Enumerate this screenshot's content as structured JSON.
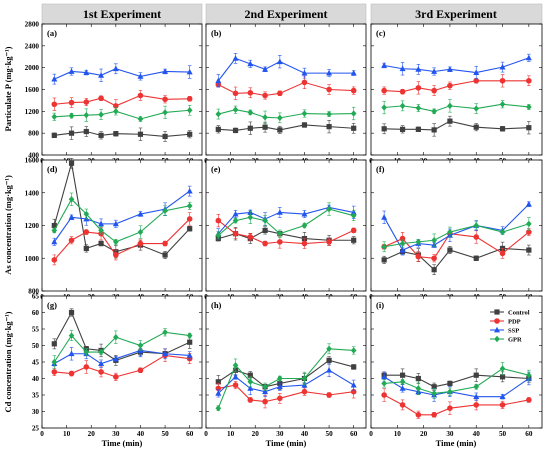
{
  "headers": [
    "1st Experiment",
    "2nd Experiment",
    "3rd Experiment"
  ],
  "x_label": "Time (min)",
  "y_labels": [
    "Particulate P (mg·kg⁻¹)",
    "As concentration (mg·kg⁻¹)",
    "Cd concentration (mg·kg⁻¹)"
  ],
  "panel_labels": [
    "(a)",
    "(b)",
    "(c)",
    "(d)",
    "(e)",
    "(f)",
    "(g)",
    "(h)",
    "(i)"
  ],
  "legend": [
    "Control",
    "PDP",
    "SSP",
    "GPR"
  ],
  "colors": {
    "Control": "#404040",
    "PDP": "#ee3333",
    "SSP": "#2255ee",
    "GPR": "#22aa55"
  },
  "chart_data": {
    "type": "line",
    "x": [
      5,
      12,
      18,
      24,
      30,
      40,
      50,
      60
    ],
    "x_ticks": [
      0,
      10,
      20,
      30,
      40,
      50,
      60
    ],
    "xlim": [
      0,
      65
    ],
    "rows": [
      {
        "ylim": [
          400,
          2800
        ],
        "yticks": [
          400,
          800,
          1200,
          1600,
          2000,
          2400,
          2800
        ]
      },
      {
        "ylim": [
          800,
          1600
        ],
        "yticks": [
          800,
          1000,
          1200,
          1400,
          1600
        ]
      },
      {
        "ylim": [
          25,
          65
        ],
        "yticks": [
          25,
          30,
          35,
          40,
          45,
          50,
          55,
          60,
          65
        ]
      }
    ],
    "panels": [
      {
        "label": "(a)",
        "series": [
          {
            "name": "Control",
            "values": [
              760,
              800,
              830,
              760,
              790,
              780,
              740,
              780
            ]
          },
          {
            "name": "PDP",
            "values": [
              1330,
              1360,
              1370,
              1440,
              1300,
              1490,
              1420,
              1430
            ]
          },
          {
            "name": "SSP",
            "values": [
              1790,
              1930,
              1910,
              1860,
              1980,
              1840,
              1930,
              1920
            ]
          },
          {
            "name": "GPR",
            "values": [
              1100,
              1120,
              1130,
              1140,
              1200,
              1060,
              1180,
              1220
            ]
          }
        ]
      },
      {
        "label": "(b)",
        "series": [
          {
            "name": "Control",
            "values": [
              870,
              850,
              890,
              910,
              860,
              950,
              920,
              890
            ]
          },
          {
            "name": "PDP",
            "values": [
              1690,
              1530,
              1540,
              1490,
              1530,
              1730,
              1600,
              1580
            ]
          },
          {
            "name": "SSP",
            "values": [
              1760,
              2170,
              2070,
              1970,
              2110,
              1900,
              1900,
              1900
            ]
          },
          {
            "name": "GPR",
            "values": [
              1150,
              1230,
              1180,
              1090,
              1080,
              1160,
              1150,
              1160
            ]
          }
        ]
      },
      {
        "label": "(c)",
        "series": [
          {
            "name": "Control",
            "values": [
              880,
              870,
              870,
              860,
              1020,
              910,
              880,
              900
            ]
          },
          {
            "name": "PDP",
            "values": [
              1580,
              1560,
              1630,
              1580,
              1670,
              1760,
              1760,
              1760
            ]
          },
          {
            "name": "SSP",
            "values": [
              2040,
              1980,
              1970,
              1930,
              1970,
              1910,
              2010,
              2180
            ]
          },
          {
            "name": "GPR",
            "values": [
              1270,
              1300,
              1260,
              1200,
              1300,
              1250,
              1330,
              1280
            ]
          }
        ]
      },
      {
        "label": "(d)",
        "series": [
          {
            "name": "Control",
            "values": [
              1200,
              1580,
              1060,
              1090,
              1040,
              1080,
              1020,
              1180
            ]
          },
          {
            "name": "PDP",
            "values": [
              990,
              1110,
              1160,
              1150,
              1020,
              1090,
              1090,
              1240
            ]
          },
          {
            "name": "SSP",
            "values": [
              1100,
              1250,
              1240,
              1210,
              1210,
              1270,
              1300,
              1410
            ]
          },
          {
            "name": "GPR",
            "values": [
              1170,
              1360,
              1270,
              1170,
              1100,
              1160,
              1290,
              1320
            ]
          }
        ]
      },
      {
        "label": "(e)",
        "series": [
          {
            "name": "Control",
            "values": [
              1120,
              1150,
              1120,
              1170,
              1150,
              1120,
              1110,
              1110
            ]
          },
          {
            "name": "PDP",
            "values": [
              1230,
              1150,
              1130,
              1090,
              1100,
              1090,
              1100,
              1170
            ]
          },
          {
            "name": "SSP",
            "values": [
              1150,
              1270,
              1280,
              1240,
              1280,
              1270,
              1310,
              1280
            ]
          },
          {
            "name": "GPR",
            "values": [
              1140,
              1230,
              1250,
              1230,
              1150,
              1200,
              1300,
              1260
            ]
          }
        ]
      },
      {
        "label": "(f)",
        "series": [
          {
            "name": "Control",
            "values": [
              990,
              1040,
              1020,
              930,
              1050,
              1000,
              1060,
              1050
            ]
          },
          {
            "name": "PDP",
            "values": [
              1070,
              1120,
              1010,
              1000,
              1150,
              1130,
              1030,
              1160
            ]
          },
          {
            "name": "SSP",
            "values": [
              1250,
              1050,
              1090,
              1080,
              1140,
              1200,
              1170,
              1330
            ]
          },
          {
            "name": "GPR",
            "values": [
              1070,
              1090,
              1100,
              1110,
              1160,
              1200,
              1160,
              1210
            ]
          }
        ]
      },
      {
        "label": "(g)",
        "series": [
          {
            "name": "Control",
            "values": [
              50.5,
              60,
              49,
              48.5,
              45.5,
              48,
              47.5,
              51
            ]
          },
          {
            "name": "PDP",
            "values": [
              42,
              41.5,
              43.5,
              42,
              40.5,
              42.5,
              47,
              46
            ]
          },
          {
            "name": "SSP",
            "values": [
              44.5,
              47.5,
              47.5,
              44.5,
              46,
              48.5,
              47.5,
              47
            ]
          },
          {
            "name": "GPR",
            "values": [
              45,
              53,
              48,
              48,
              52.5,
              50,
              54,
              53
            ]
          }
        ]
      },
      {
        "label": "(h)",
        "series": [
          {
            "name": "Control",
            "values": [
              39,
              42.5,
              41,
              37.5,
              38.5,
              40,
              45.5,
              43.5
            ]
          },
          {
            "name": "PDP",
            "values": [
              37,
              38,
              33.5,
              33,
              34,
              36,
              35,
              36
            ]
          },
          {
            "name": "SSP",
            "values": [
              35.5,
              40.5,
              37,
              36,
              37.5,
              38,
              42.5,
              38
            ]
          },
          {
            "name": "GPR",
            "values": [
              31,
              44,
              39,
              37.5,
              40,
              40,
              49,
              48.5
            ]
          }
        ]
      },
      {
        "label": "(i)",
        "series": [
          {
            "name": "Control",
            "values": [
              41,
              41,
              40,
              37.5,
              38.5,
              41,
              40.5,
              40
            ]
          },
          {
            "name": "PDP",
            "values": [
              35,
              32,
              29,
              29,
              31,
              32,
              32,
              33.5
            ]
          },
          {
            "name": "SSP",
            "values": [
              40.5,
              37,
              36,
              35,
              36,
              34.5,
              34.5,
              40
            ]
          },
          {
            "name": "GPR",
            "values": [
              38.5,
              39,
              37,
              35.5,
              36,
              37.5,
              43,
              41
            ]
          }
        ]
      }
    ]
  }
}
